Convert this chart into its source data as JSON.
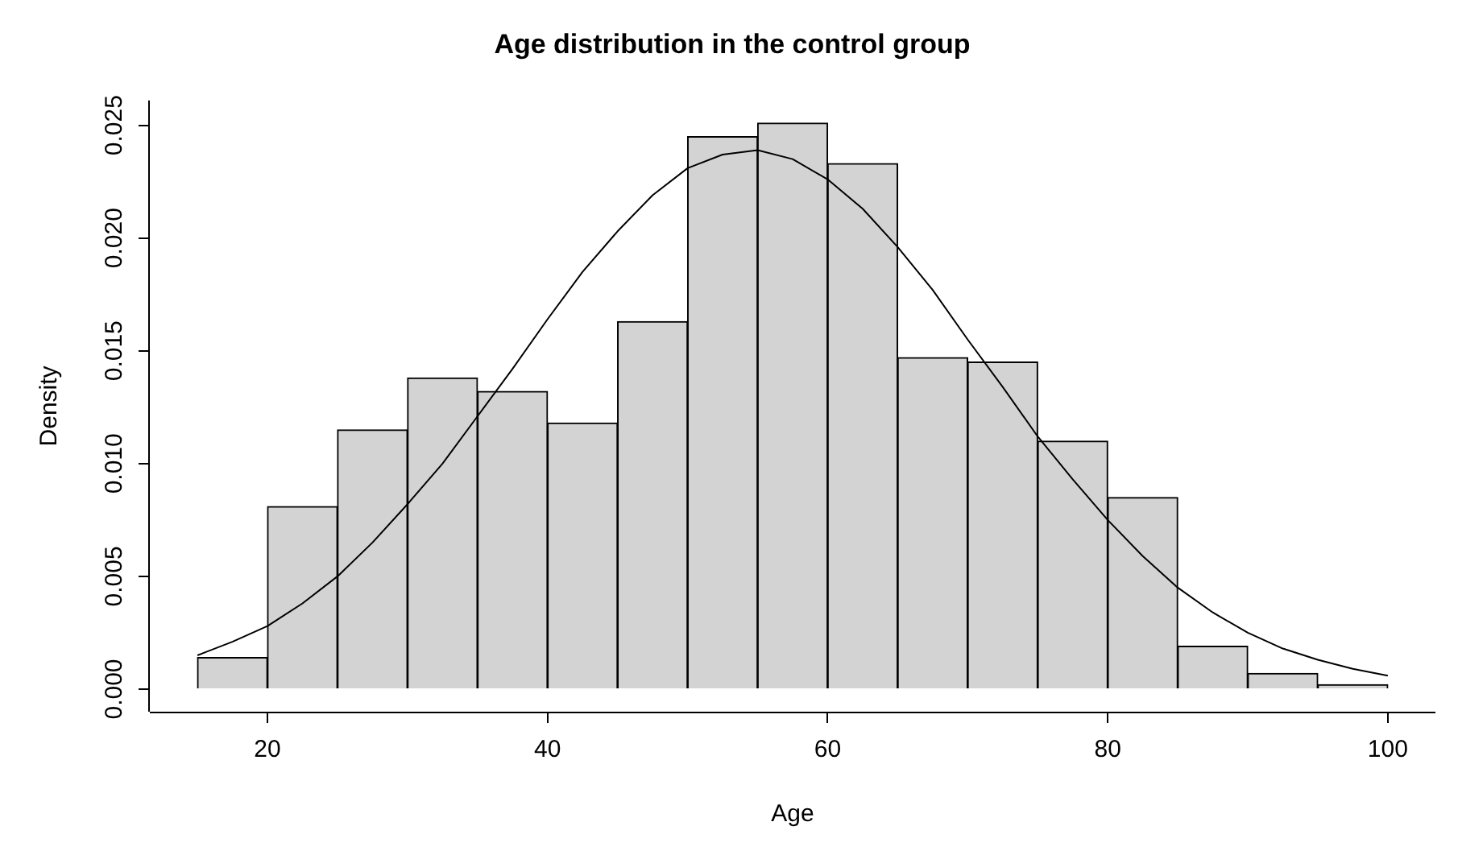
{
  "chart_data": {
    "type": "histogram",
    "title": "Age distribution in the control group",
    "xlabel": "Age",
    "ylabel": "Density",
    "bins": [
      15,
      20,
      25,
      30,
      35,
      40,
      45,
      50,
      55,
      60,
      65,
      70,
      75,
      80,
      85,
      90,
      95,
      100
    ],
    "values": [
      0.0014,
      0.0081,
      0.0115,
      0.0138,
      0.0132,
      0.0118,
      0.0163,
      0.0245,
      0.0251,
      0.0233,
      0.0147,
      0.0145,
      0.011,
      0.0085,
      0.0019,
      0.0007,
      0.0002
    ],
    "color": "#d3d3d3",
    "series": [
      {
        "type": "line",
        "color": "#000000",
        "x": [
          15,
          17.5,
          20,
          22.5,
          25,
          27.5,
          30,
          32.5,
          35,
          37.5,
          40,
          42.5,
          45,
          47.5,
          50,
          52.5,
          55,
          57.5,
          60,
          62.5,
          65,
          67.5,
          70,
          72.5,
          75,
          77.5,
          80,
          82.5,
          85,
          87.5,
          90,
          92.5,
          95,
          97.5,
          100
        ],
        "values": [
          0.0015,
          0.0021,
          0.0028,
          0.0038,
          0.005,
          0.0065,
          0.0082,
          0.01,
          0.0121,
          0.0142,
          0.0164,
          0.0185,
          0.0203,
          0.0219,
          0.0231,
          0.0237,
          0.0239,
          0.0235,
          0.0226,
          0.0213,
          0.0196,
          0.0177,
          0.0155,
          0.0134,
          0.0112,
          0.0093,
          0.0075,
          0.0059,
          0.0045,
          0.0034,
          0.0025,
          0.0018,
          0.0013,
          0.0009,
          0.0006
        ]
      }
    ],
    "xlim": [
      11.6,
      103.4
    ],
    "xticks": [
      20,
      40,
      60,
      80,
      100
    ],
    "ylim": [
      -0.001,
      0.0261
    ],
    "yticks": [
      {
        "value": 0,
        "label": "0.000"
      },
      {
        "value": 0.005,
        "label": "0.005"
      },
      {
        "value": 0.01,
        "label": "0.010"
      },
      {
        "value": 0.015,
        "label": "0.015"
      },
      {
        "value": 0.02,
        "label": "0.020"
      },
      {
        "value": 0.025,
        "label": "0.025"
      }
    ],
    "grid": false,
    "legend": false
  }
}
